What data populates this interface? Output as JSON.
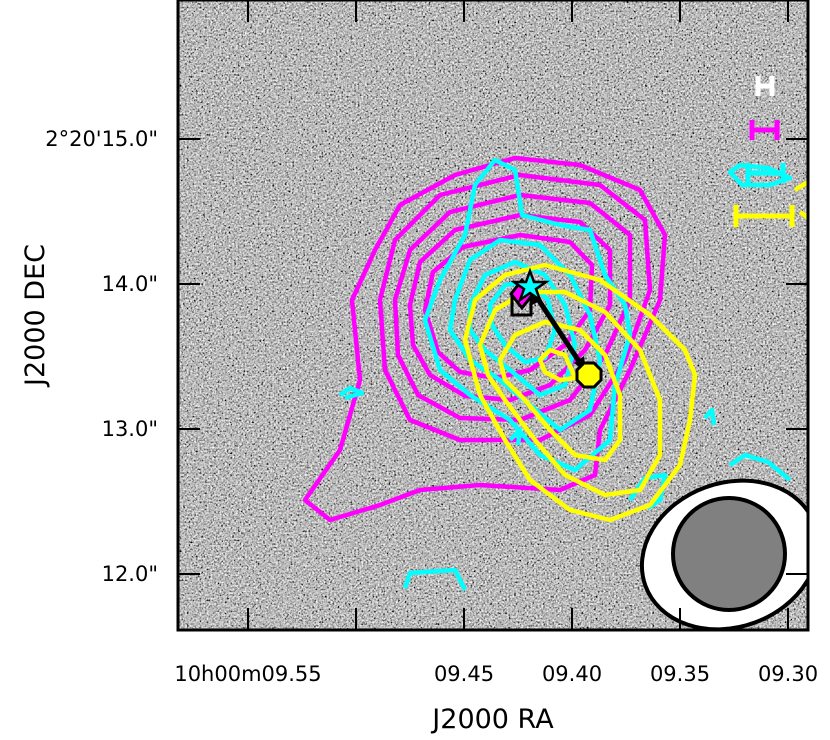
{
  "chart_data": {
    "type": "image-with-contours",
    "xlabel": "J2000 RA",
    "ylabel": "J2000 DEC",
    "x_ticks": [
      "10h00m09.55",
      "09.45",
      "09.40",
      "09.35",
      "09.30"
    ],
    "y_ticks": [
      "2°20'15.0\"",
      "14.0\"",
      "13.0\"",
      "12.0\""
    ],
    "contour_colors": {
      "magenta": "#ff00ff",
      "cyan": "#00ffff",
      "yellow": "#ffff00"
    },
    "markers": [
      {
        "name": "star",
        "color": "#00ffff"
      },
      {
        "name": "diamond",
        "color": "#ff00ff"
      },
      {
        "name": "square",
        "color": "#ffff00"
      },
      {
        "name": "octagon",
        "color": "#ffff00"
      }
    ],
    "beam": {
      "fill": "#808080"
    }
  }
}
